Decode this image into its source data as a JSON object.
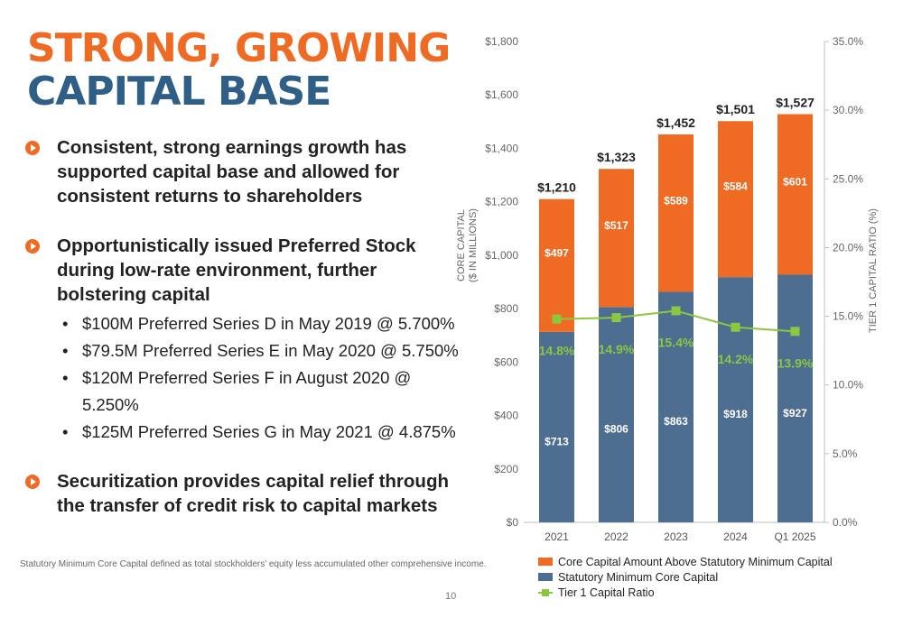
{
  "slide": {
    "title_line1": "STRONG, GROWING",
    "title_line2": "CAPITAL BASE",
    "bullets": [
      {
        "text": "Consistent, strong earnings growth has supported capital base and allowed for consistent returns to shareholders"
      },
      {
        "text": "Opportunistically issued Preferred Stock during low-rate environment, further bolstering capital",
        "sub_items": [
          "$100M Preferred Series D in May 2019 @ 5.700%",
          "$79.5M Preferred Series E in May 2020 @ 5.750%",
          "$120M Preferred Series F in August 2020 @ 5.250%",
          "$125M Preferred Series G in May 2021 @ 4.875%"
        ]
      },
      {
        "text": "Securitization provides capital relief through the transfer of credit risk to capital markets"
      }
    ],
    "footnote": "Statutory Minimum Core Capital defined as total stockholders’ equity less accumulated other comprehensive income.",
    "page_number": "10"
  },
  "colors": {
    "orange": "#ef6a23",
    "navy": "#2f5f86",
    "bar_navy": "#4d6d91",
    "green": "#8dc63f"
  },
  "chart_data": {
    "type": "bar",
    "stacked": true,
    "categories": [
      "2021",
      "2022",
      "2023",
      "2024",
      "Q1 2025"
    ],
    "series": [
      {
        "name": "Statutory Minimum Core Capital",
        "values": [
          713,
          806,
          863,
          918,
          927
        ],
        "labels": [
          "$713",
          "$806",
          "$863",
          "$918",
          "$927"
        ],
        "color": "#4d6d91"
      },
      {
        "name": "Core Capital Amount Above Statutory Minimum Capital",
        "values": [
          497,
          517,
          589,
          584,
          601
        ],
        "labels": [
          "$497",
          "$517",
          "$589",
          "$584",
          "$601"
        ],
        "color": "#ef6a23"
      }
    ],
    "totals": [
      "$1,210",
      "$1,323",
      "$1,452",
      "$1,501",
      "$1,527"
    ],
    "line_series": {
      "name": "Tier 1 Capital Ratio",
      "axis": "right",
      "values": [
        14.8,
        14.9,
        15.4,
        14.2,
        13.9
      ],
      "labels": [
        "14.8%",
        "14.9%",
        "15.4%",
        "14.2%",
        "13.9%"
      ],
      "color": "#8dc63f"
    },
    "ylabel": "CORE CAPITAL\n($ IN MILLIONS)",
    "y2label": "TIER 1 CAPITAL RATIO (%)",
    "ylim": [
      0,
      1800
    ],
    "yticks": [
      "$0",
      "$200",
      "$400",
      "$600",
      "$800",
      "$1,000",
      "$1,200",
      "$1,400",
      "$1,600",
      "$1,800"
    ],
    "y2lim": [
      0,
      35
    ],
    "y2ticks": [
      "0.0%",
      "5.0%",
      "10.0%",
      "15.0%",
      "20.0%",
      "25.0%",
      "30.0%",
      "35.0%"
    ],
    "legend_order": [
      "Core Capital Amount Above Statutory Minimum Capital",
      "Statutory Minimum Core Capital",
      "Tier 1 Capital Ratio"
    ],
    "legend_position": "bottom",
    "grid": false
  }
}
